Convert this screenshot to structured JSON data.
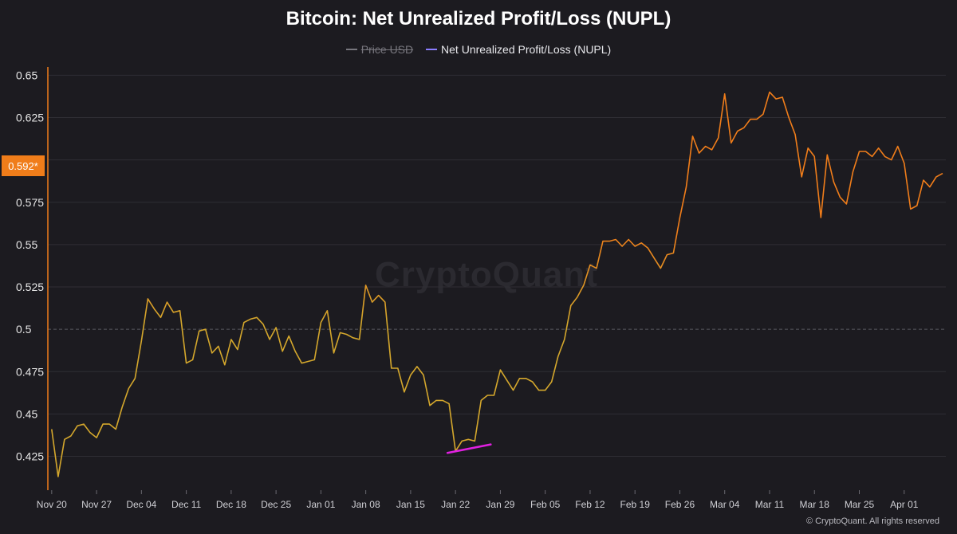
{
  "title": "Bitcoin: Net Unrealized Profit/Loss (NUPL)",
  "legend": [
    {
      "label": "Price USD",
      "color": "#77767d",
      "hidden": true
    },
    {
      "label": "Net Unrealized Profit/Loss (NUPL)",
      "color": "#8b7dff",
      "hidden": false
    }
  ],
  "watermark": "CryptoQuant",
  "footer": "© CryptoQuant. All rights reserved",
  "current_value_label": "0.592*",
  "colors": {
    "background": "#1c1b20",
    "line_low": "#d4a72c",
    "line_high": "#f07d1a",
    "grid": "#2f2e34",
    "reference_line": "#5a5960",
    "highlight": "#e020e0",
    "badge": "#f07d1a"
  },
  "chart_data": {
    "type": "line",
    "y_ticks": [
      "0.425",
      "0.45",
      "0.475",
      "0.5",
      "0.525",
      "0.55",
      "0.575",
      "0.6",
      "0.625",
      "0.65"
    ],
    "x_ticks": [
      "Nov 20",
      "Nov 27",
      "Dec 04",
      "Dec 11",
      "Dec 18",
      "Dec 25",
      "Jan 01",
      "Jan 08",
      "Jan 15",
      "Jan 22",
      "Jan 29",
      "Feb 05",
      "Feb 12",
      "Feb 19",
      "Feb 26",
      "Mar 04",
      "Mar 11",
      "Mar 18",
      "Mar 25",
      "Apr 01"
    ],
    "ylim": [
      0.405,
      0.653
    ],
    "x_range_days": [
      -0.6,
      139.5
    ],
    "reference_line": 0.5,
    "series": [
      {
        "name": "Net Unrealized Profit/Loss (NUPL)",
        "x_days": [
          0,
          1,
          2,
          3,
          4,
          5,
          6,
          7,
          8,
          9,
          10,
          11,
          12,
          13,
          14,
          15,
          16,
          17,
          18,
          19,
          20,
          21,
          22,
          23,
          24,
          25,
          26,
          27,
          28,
          29,
          30,
          31,
          32,
          33,
          34,
          35,
          36,
          37,
          38,
          39,
          40,
          41,
          42,
          43,
          44,
          45,
          46,
          47,
          48,
          49,
          50,
          51,
          52,
          53,
          54,
          55,
          56,
          57,
          58,
          59,
          60,
          61,
          62,
          63,
          64,
          65,
          66,
          67,
          68,
          69,
          70,
          71,
          72,
          73,
          74,
          75,
          76,
          77,
          78,
          79,
          80,
          81,
          82,
          83,
          84,
          85,
          86,
          87,
          88,
          89,
          90,
          91,
          92,
          93,
          94,
          95,
          96,
          97,
          98,
          99,
          100,
          101,
          102,
          103,
          104,
          105,
          106,
          107,
          108,
          109,
          110,
          111,
          112,
          113,
          114,
          115,
          116,
          117,
          118,
          119,
          120,
          121,
          122,
          123,
          124,
          125,
          126,
          127,
          128,
          129,
          130,
          131,
          132,
          133,
          134,
          135,
          136,
          137,
          138,
          139
        ],
        "values": [
          0.441,
          0.413,
          0.435,
          0.437,
          0.443,
          0.444,
          0.439,
          0.436,
          0.444,
          0.444,
          0.441,
          0.454,
          0.465,
          0.471,
          0.493,
          0.518,
          0.512,
          0.507,
          0.516,
          0.51,
          0.511,
          0.48,
          0.482,
          0.499,
          0.5,
          0.486,
          0.49,
          0.479,
          0.494,
          0.488,
          0.504,
          0.506,
          0.507,
          0.503,
          0.494,
          0.501,
          0.487,
          0.496,
          0.487,
          0.48,
          0.481,
          0.482,
          0.504,
          0.511,
          0.486,
          0.498,
          0.497,
          0.495,
          0.494,
          0.526,
          0.516,
          0.52,
          0.516,
          0.477,
          0.477,
          0.463,
          0.473,
          0.478,
          0.473,
          0.455,
          0.458,
          0.458,
          0.456,
          0.428,
          0.434,
          0.435,
          0.434,
          0.458,
          0.461,
          0.461,
          0.476,
          0.47,
          0.464,
          0.471,
          0.471,
          0.469,
          0.464,
          0.464,
          0.469,
          0.484,
          0.494,
          0.514,
          0.519,
          0.526,
          0.538,
          0.536,
          0.552,
          0.552,
          0.553,
          0.549,
          0.553,
          0.549,
          0.551,
          0.548,
          0.542,
          0.536,
          0.544,
          0.545,
          0.566,
          0.584,
          0.614,
          0.604,
          0.608,
          0.606,
          0.613,
          0.639,
          0.61,
          0.617,
          0.619,
          0.624,
          0.624,
          0.627,
          0.64,
          0.636,
          0.637,
          0.625,
          0.615,
          0.59,
          0.607,
          0.602,
          0.566,
          0.603,
          0.587,
          0.578,
          0.574,
          0.593,
          0.605,
          0.605,
          0.602,
          0.607,
          0.602,
          0.6,
          0.608,
          0.598,
          0.571,
          0.573,
          0.588,
          0.584,
          0.59,
          0.592
        ]
      }
    ],
    "annotation": {
      "type": "trendline",
      "from": [
        62,
        0.427
      ],
      "to": [
        68,
        0.432
      ]
    }
  }
}
